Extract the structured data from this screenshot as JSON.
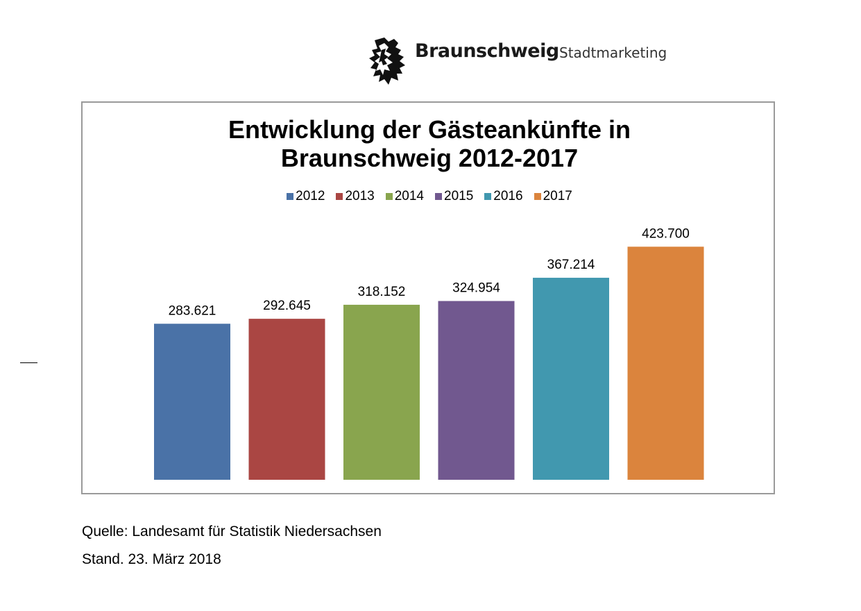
{
  "brand": {
    "name": "Braunschweig",
    "subtitle": "Stadtmarketing",
    "logo_icon": "lion-icon"
  },
  "chart_data": {
    "type": "bar",
    "title_lines": [
      "Entwicklung der Gästeankünfte in",
      "Braunschweig 2012-2017"
    ],
    "categories": [
      "2012",
      "2013",
      "2014",
      "2015",
      "2016",
      "2017"
    ],
    "values": [
      283621,
      292645,
      318152,
      324954,
      367214,
      423700
    ],
    "data_labels": [
      "283.621",
      "292.645",
      "318.152",
      "324.954",
      "367.214",
      "423.700"
    ],
    "colors": [
      "#4a72a7",
      "#aa4643",
      "#89a54e",
      "#71588f",
      "#4198af",
      "#db843d"
    ],
    "legend_position": "top",
    "xlabel": "",
    "ylabel": "",
    "ylim": [
      0,
      467000
    ],
    "grid": false,
    "axes_visible": false
  },
  "footer": {
    "source": "Quelle: Landesamt für Statistik Niedersachsen",
    "date": "Stand. 23. März 2018"
  }
}
